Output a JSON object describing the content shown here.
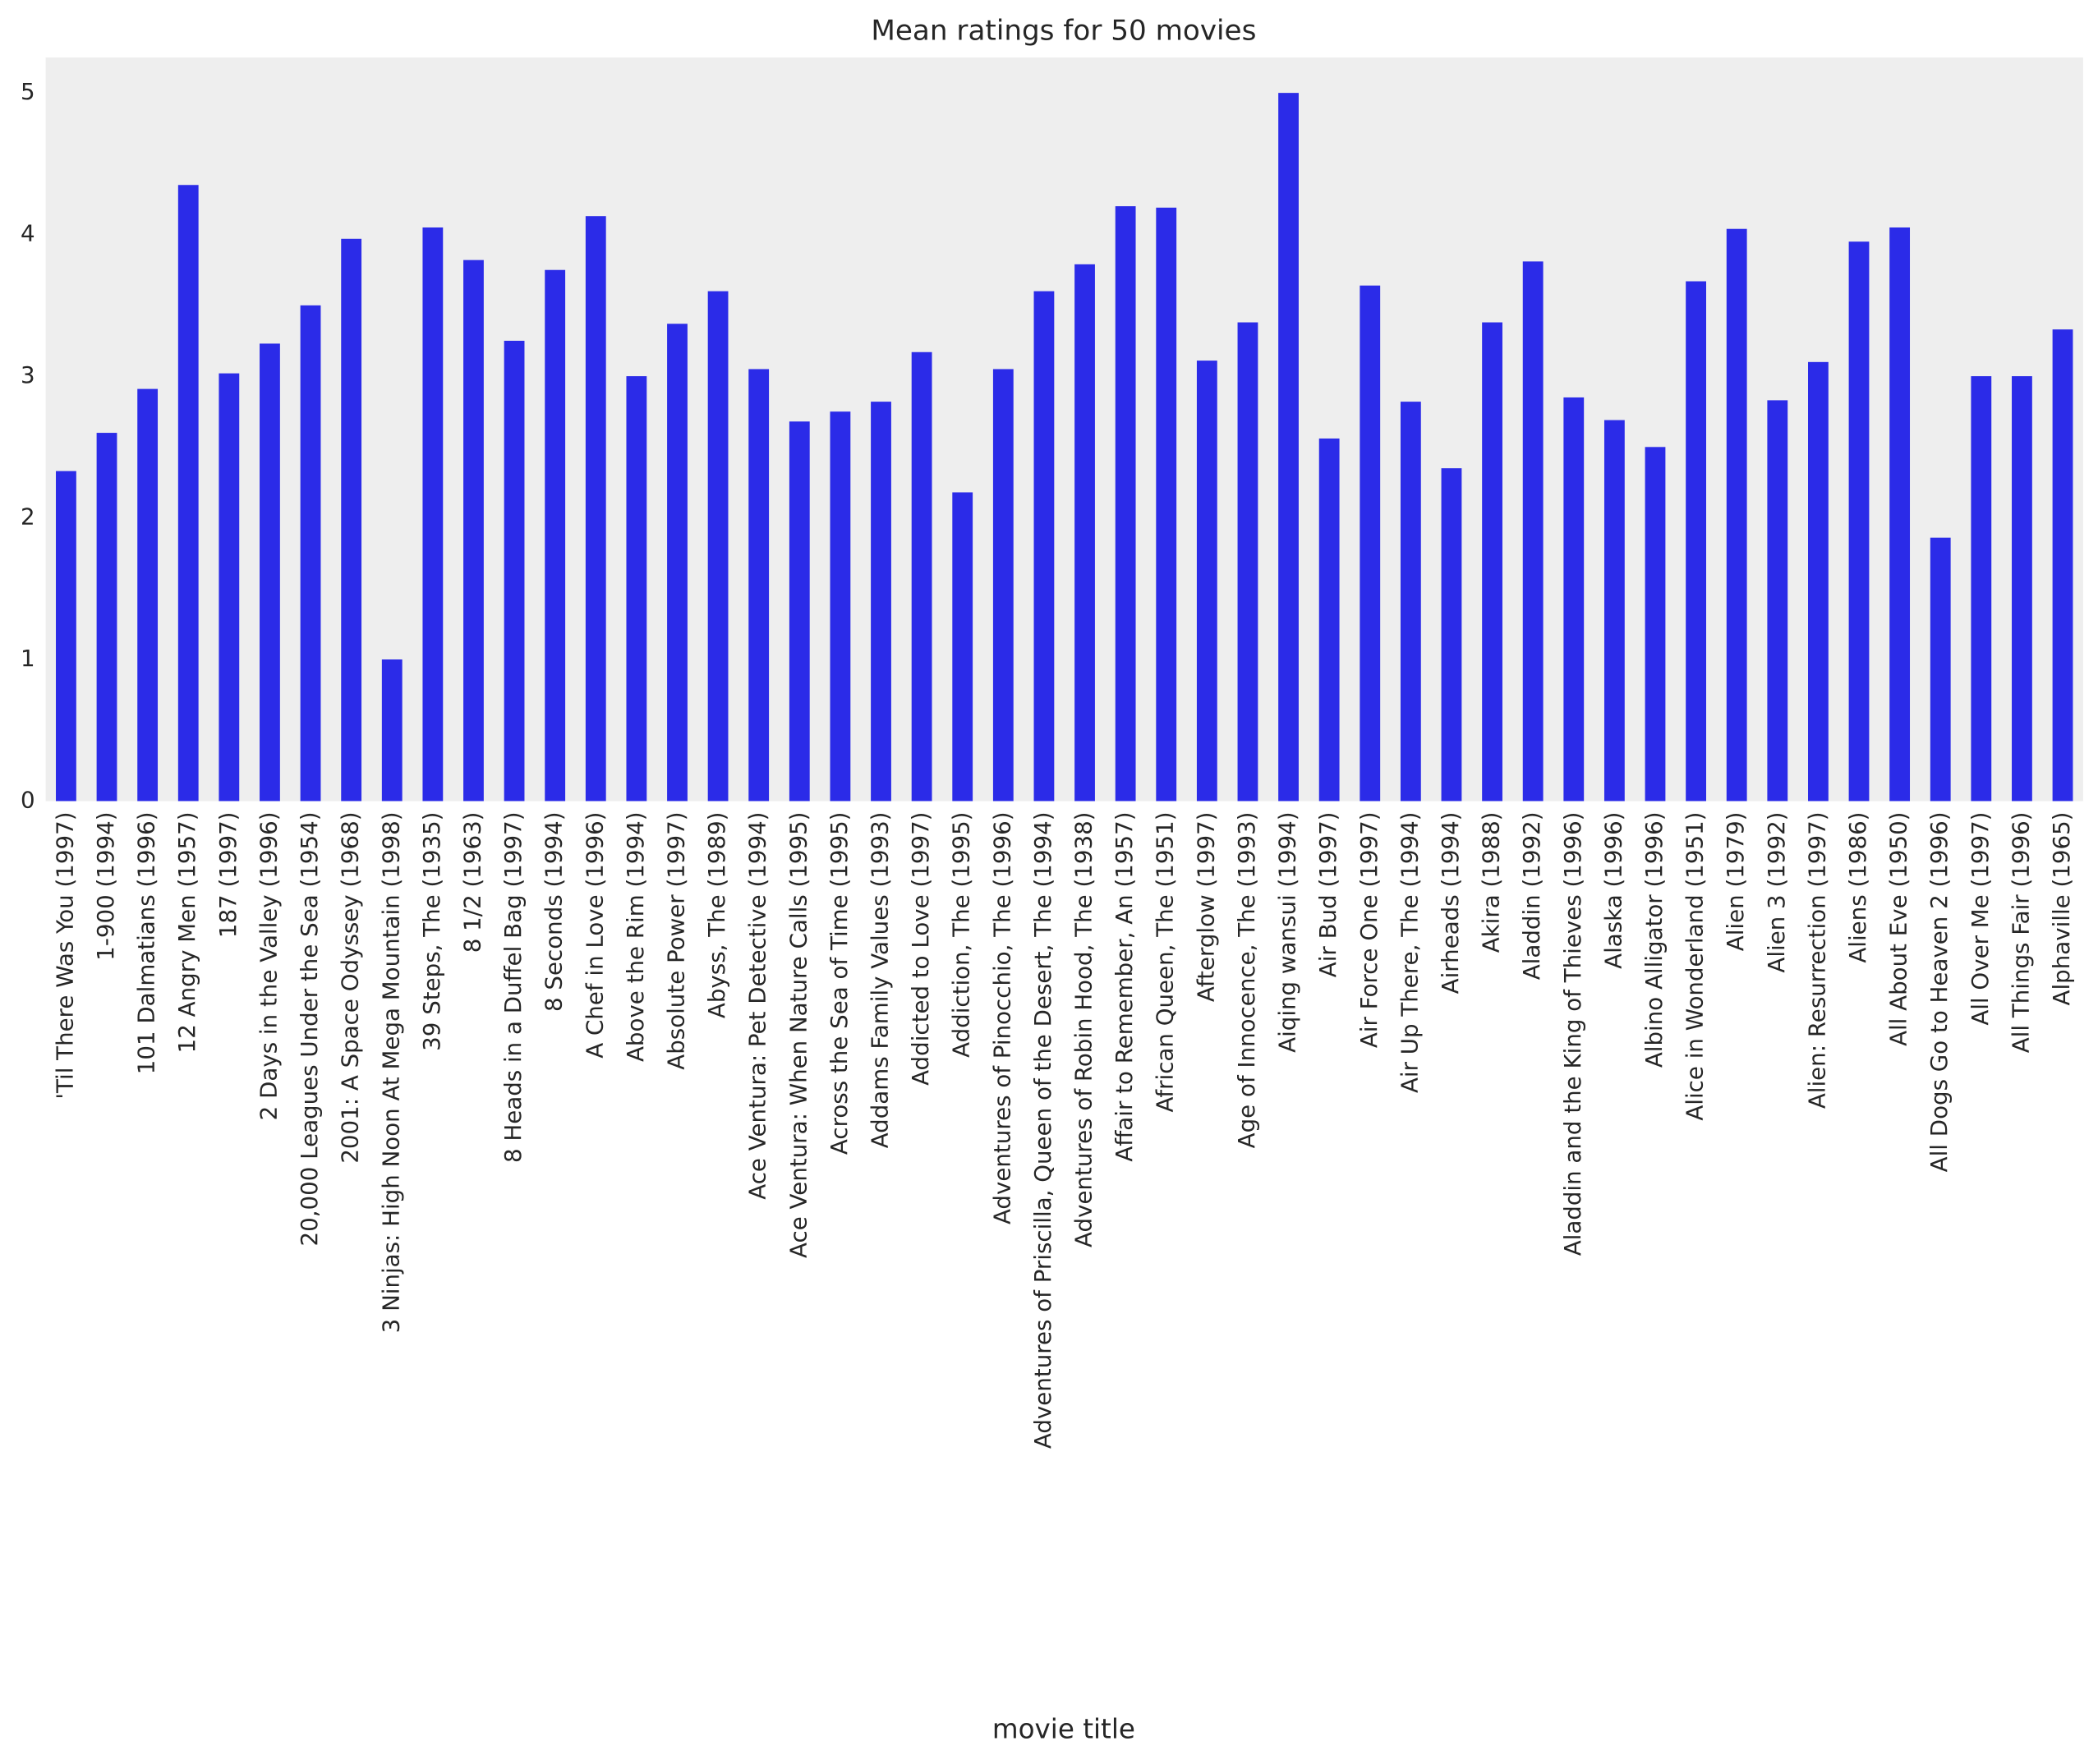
{
  "chart_data": {
    "type": "bar",
    "title": "Mean ratings for 50 movies",
    "x_label": "movie title",
    "categories": [
      "'Til There Was You (1997)",
      "1-900 (1994)",
      "101 Dalmatians (1996)",
      "12 Angry Men (1957)",
      "187 (1997)",
      "2 Days in the Valley (1996)",
      "20,000 Leagues Under the Sea (1954)",
      "2001: A Space Odyssey (1968)",
      "3 Ninjas: High Noon At Mega Mountain (1998)",
      "39 Steps, The (1935)",
      "8 1/2 (1963)",
      "8 Heads in a Duffel Bag (1997)",
      "8 Seconds (1994)",
      "A Chef in Love (1996)",
      "Above the Rim (1994)",
      "Absolute Power (1997)",
      "Abyss, The (1989)",
      "Ace Ventura: Pet Detective (1994)",
      "Ace Ventura: When Nature Calls (1995)",
      "Across the Sea of Time (1995)",
      "Addams Family Values (1993)",
      "Addicted to Love (1997)",
      "Addiction, The (1995)",
      "Adventures of Pinocchio, The (1996)",
      "Adventures of Priscilla, Queen of the Desert, The (1994)",
      "Adventures of Robin Hood, The (1938)",
      "Affair to Remember, An (1957)",
      "African Queen, The (1951)",
      "Afterglow (1997)",
      "Age of Innocence, The (1993)",
      "Aiqing wansui (1994)",
      "Air Bud (1997)",
      "Air Force One (1997)",
      "Air Up There, The (1994)",
      "Airheads (1994)",
      "Akira (1988)",
      "Aladdin (1992)",
      "Aladdin and the King of Thieves (1996)",
      "Alaska (1996)",
      "Albino Alligator (1996)",
      "Alice in Wonderland (1951)",
      "Alien (1979)",
      "Alien 3 (1992)",
      "Alien: Resurrection (1997)",
      "Aliens (1986)",
      "All About Eve (1950)",
      "All Dogs Go to Heaven 2 (1996)",
      "All Over Me (1997)",
      "All Things Fair (1996)",
      "Alphaville (1965)"
    ],
    "values": [
      2.33,
      2.6,
      2.91,
      4.35,
      3.02,
      3.23,
      3.5,
      3.97,
      1.0,
      4.05,
      3.82,
      3.25,
      3.75,
      4.13,
      3.0,
      3.37,
      3.6,
      3.05,
      2.68,
      2.75,
      2.82,
      3.17,
      2.18,
      3.05,
      3.6,
      3.79,
      4.2,
      4.19,
      3.11,
      3.38,
      5.0,
      2.56,
      3.64,
      2.82,
      2.35,
      3.38,
      3.81,
      2.85,
      2.69,
      2.5,
      3.67,
      4.04,
      2.83,
      3.1,
      3.95,
      4.05,
      1.86,
      3.0,
      3.0,
      3.33
    ],
    "color": "#2b2be8",
    "ylim": [
      0,
      5.25
    ],
    "yticks": [
      0,
      1,
      2,
      3,
      4,
      5
    ],
    "grid": false
  }
}
